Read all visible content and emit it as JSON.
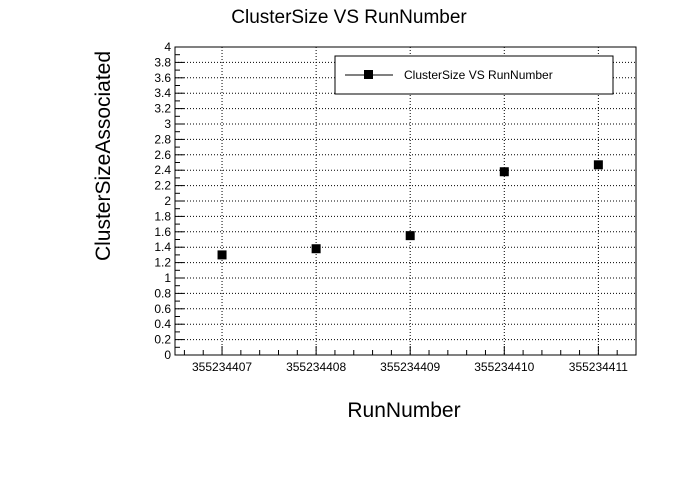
{
  "chart_data": {
    "type": "scatter",
    "title": "ClusterSize VS RunNumber",
    "xlabel": "RunNumber",
    "ylabel": "ClusterSizeAssociated",
    "xlim": [
      355234406.5,
      355234411.4
    ],
    "ylim": [
      0,
      4
    ],
    "x_ticks": [
      "355234407",
      "355234408",
      "355234409",
      "355234410",
      "355234411"
    ],
    "y_ticks": [
      "0",
      "0.2",
      "0.4",
      "0.6",
      "0.8",
      "1",
      "1.2",
      "1.4",
      "1.6",
      "1.8",
      "2",
      "2.2",
      "2.4",
      "2.6",
      "2.8",
      "3",
      "3.2",
      "3.4",
      "3.6",
      "3.8",
      "4"
    ],
    "grid": true,
    "legend_position": "top-right",
    "series": [
      {
        "name": "ClusterSize VS RunNumber",
        "marker": "square",
        "color": "#000000",
        "x": [
          355234407,
          355234408,
          355234409,
          355234410,
          355234411
        ],
        "y": [
          1.3,
          1.38,
          1.55,
          2.38,
          2.47
        ]
      }
    ]
  }
}
